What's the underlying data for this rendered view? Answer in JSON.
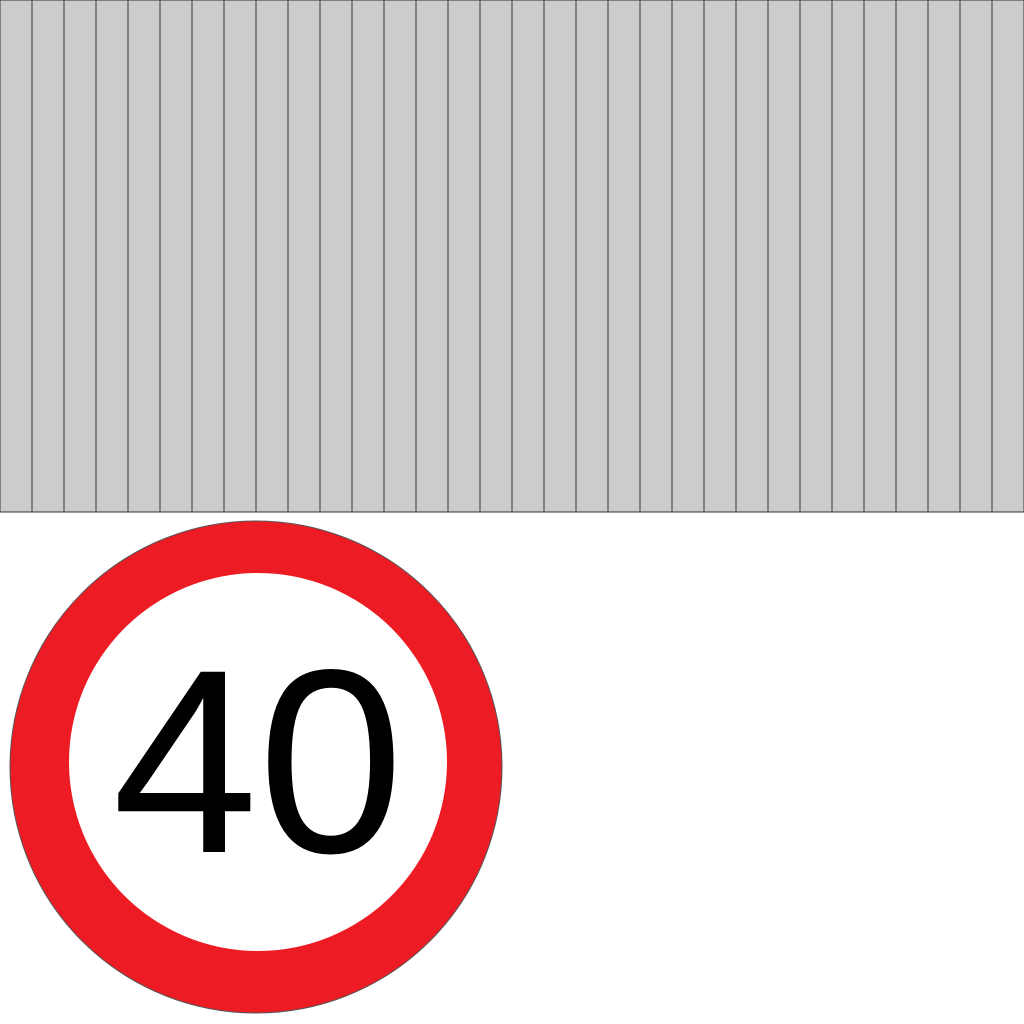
{
  "speed_sign": {
    "value": "40"
  },
  "colors": {
    "stripe_fill": "#cccccc",
    "stripe_line": "#333333",
    "sign_ring": "#ed1c24",
    "sign_face": "#ffffff",
    "sign_text": "#000000",
    "sign_outline": "#555555",
    "background": "#ffffff"
  },
  "icons": {
    "pattern": "striped-panel-pattern",
    "sign": "speed-limit-sign-icon"
  }
}
